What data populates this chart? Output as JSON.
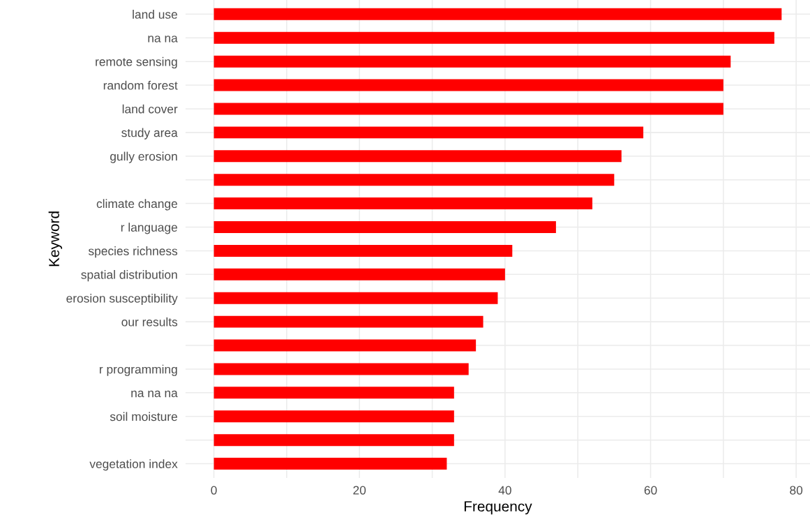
{
  "chart_data": {
    "type": "bar",
    "orientation": "horizontal",
    "xlabel": "Frequency",
    "ylabel": "Keyword",
    "categories": [
      "land use",
      "na na",
      "remote sensing",
      "random forest",
      "land cover",
      "study area",
      "gully erosion",
      null,
      "climate change",
      "r language",
      "species richness",
      "spatial distribution",
      "erosion susceptibility",
      "our results",
      null,
      "r programming",
      "na na na",
      "soil moisture",
      null,
      "vegetation index"
    ],
    "values": [
      78,
      77,
      71,
      70,
      70,
      59,
      56,
      55,
      52,
      47,
      41,
      40,
      39,
      37,
      36,
      35,
      33,
      33,
      33,
      32
    ],
    "color": "#ff0000",
    "xlim": [
      -3.9,
      81.9
    ],
    "xticks": [
      0,
      {
        "value": 10,
        "label": null
      },
      20,
      {
        "value": 30,
        "label": null
      },
      40,
      {
        "value": 50,
        "label": null
      },
      60,
      {
        "value": 70,
        "label": null
      },
      80
    ],
    "grid": true,
    "legend": false
  }
}
